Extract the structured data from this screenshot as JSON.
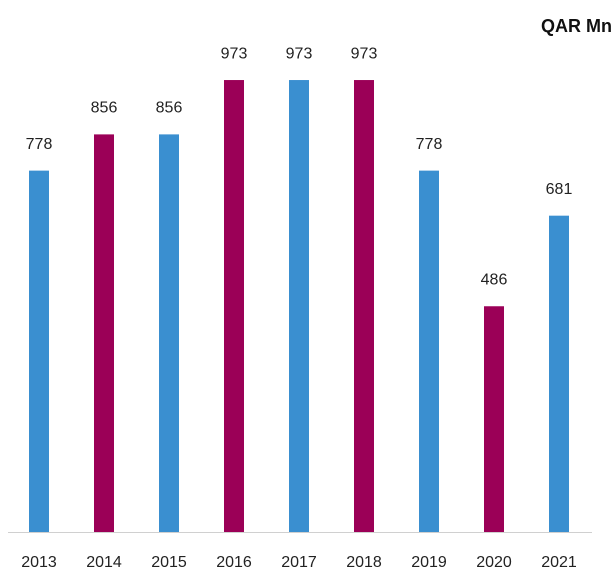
{
  "chart_data": {
    "type": "bar",
    "title": "QAR Mn",
    "categories": [
      "2013",
      "2014",
      "2015",
      "2016",
      "2017",
      "2018",
      "2019",
      "2020",
      "2021"
    ],
    "values": [
      778,
      856,
      856,
      973,
      973,
      973,
      778,
      486,
      681
    ],
    "colors": [
      "#3a8fd0",
      "#9b0057",
      "#3a8fd0",
      "#9b0057",
      "#3a8fd0",
      "#9b0057",
      "#3a8fd0",
      "#9b0057",
      "#3a8fd0"
    ],
    "ylim": [
      0,
      1000
    ]
  }
}
